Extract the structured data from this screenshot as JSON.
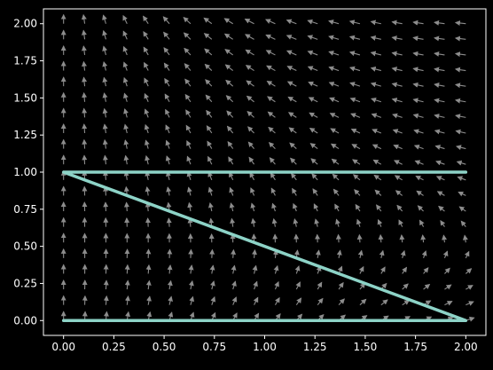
{
  "chart_data": {
    "type": "line",
    "title": "",
    "xlabel": "",
    "ylabel": "",
    "xlim": [
      -0.1,
      2.1
    ],
    "ylim": [
      -0.1,
      2.1
    ],
    "grid": false,
    "background": "#000000",
    "colors": {
      "path": "#8dd3c7",
      "arrows": "#8c8c8c",
      "axes": "#ffffff"
    },
    "x_ticks": [
      "0.00",
      "0.25",
      "0.50",
      "0.75",
      "1.00",
      "1.25",
      "1.50",
      "1.75",
      "2.00"
    ],
    "y_ticks": [
      "0.00",
      "0.25",
      "0.50",
      "0.75",
      "1.00",
      "1.25",
      "1.50",
      "1.75",
      "2.00"
    ],
    "series": [
      {
        "x": [
          0,
          2,
          0,
          2
        ],
        "y": [
          0,
          0,
          1,
          1
        ]
      }
    ],
    "vector_field": {
      "x_range": [
        0,
        2
      ],
      "y_range": [
        0,
        2
      ],
      "grid_size": 20
    }
  }
}
